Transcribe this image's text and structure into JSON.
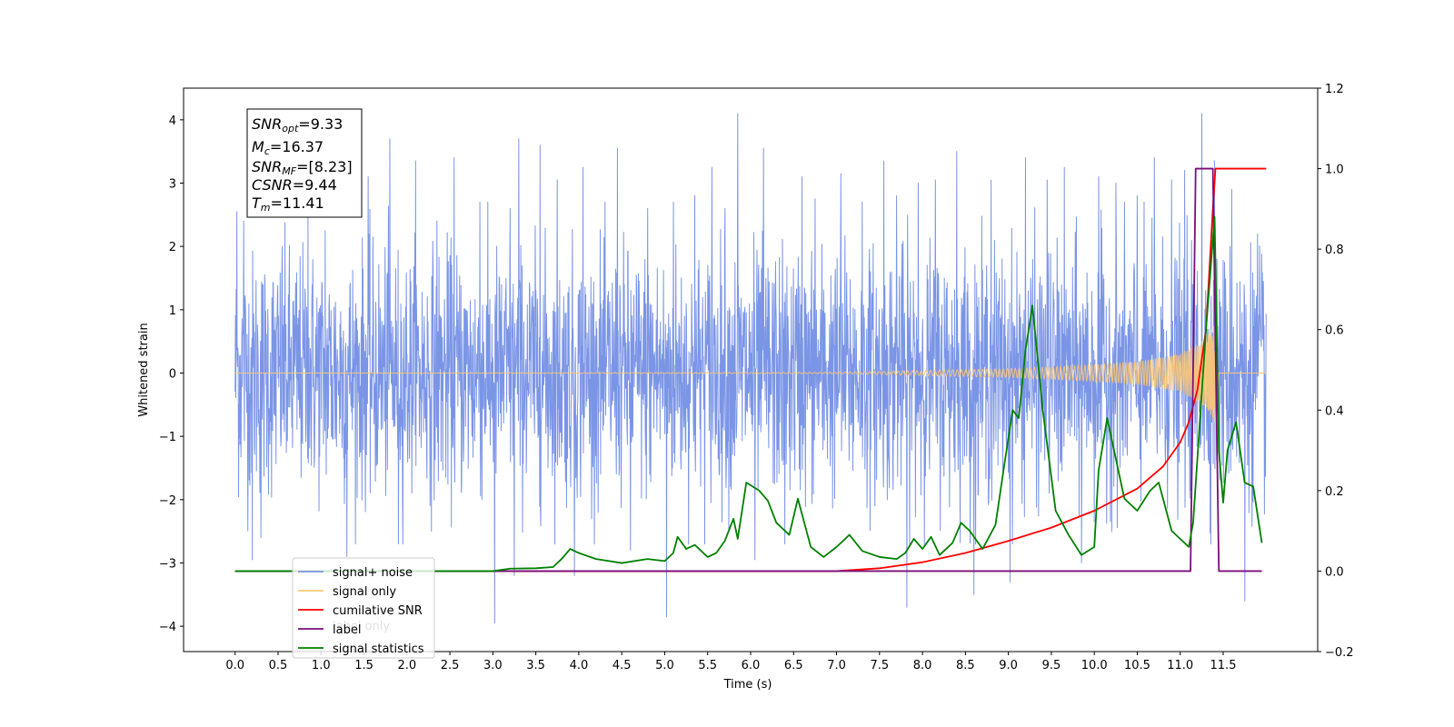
{
  "chart_data": {
    "type": "line",
    "xlabel": "Time (s)",
    "ylabel": "Whitened strain",
    "xlim": [
      -0.6,
      12.6
    ],
    "ylim": [
      -4.4,
      4.5
    ],
    "y2lim": [
      -0.2,
      1.2
    ],
    "grid": false,
    "x_ticks": [
      "0.0",
      "0.5",
      "1.0",
      "1.5",
      "2.0",
      "2.5",
      "3.0",
      "3.5",
      "4.0",
      "4.5",
      "5.0",
      "5.5",
      "6.0",
      "6.5",
      "7.0",
      "7.5",
      "8.0",
      "8.5",
      "9.0",
      "9.5",
      "10.0",
      "10.5",
      "11.0",
      "11.5"
    ],
    "y_ticks": [
      "4",
      "3",
      "2",
      "1",
      "0",
      "−1",
      "−2",
      "−3",
      "−4"
    ],
    "y2_ticks": [
      "1.2",
      "1.0",
      "0.8",
      "0.6",
      "0.4",
      "0.2",
      "0.0",
      "−0.2"
    ],
    "info_box": {
      "snr_opt": {
        "base": "SNR",
        "sub": "opt",
        "value": "=9.33"
      },
      "mc": {
        "base": "M",
        "sub": "c",
        "value": "=16.37"
      },
      "snr_mf": {
        "base": "SNR",
        "sub": "MF",
        "value": "=[8.23]"
      },
      "csnr": {
        "base": "CSNR",
        "value": "=9.44"
      },
      "tm": {
        "base": "T",
        "sub": "m",
        "value": "=11.41"
      }
    },
    "legend": {
      "placement": "lower-left",
      "entries": [
        {
          "label": "signal+ noise",
          "color": "#7b95e6"
        },
        {
          "label": "signal only",
          "color": "#ffc870"
        },
        {
          "label": "cumilative SNR",
          "color": "#ff0000"
        },
        {
          "label": "label",
          "color": "#7b0d7b"
        },
        {
          "label": "signal statistics",
          "color": "#008000"
        }
      ],
      "overlay_text": "label only"
    },
    "series": [
      {
        "name": "signal+ noise",
        "axis": "left",
        "color": "#7b95e6",
        "kind": "noise",
        "t_start": 0.0,
        "t_end": 12.0,
        "n": 3000,
        "rms": 0.95,
        "spikes": [
          [
            0.02,
            2.55
          ],
          [
            0.1,
            2.4
          ],
          [
            0.2,
            -2.95
          ],
          [
            0.3,
            -2.6
          ],
          [
            0.55,
            2.0
          ],
          [
            0.85,
            2.5
          ],
          [
            1.05,
            2.25
          ],
          [
            1.3,
            -2.9
          ],
          [
            1.55,
            3.1
          ],
          [
            1.8,
            3.7
          ],
          [
            1.9,
            -2.7
          ],
          [
            2.1,
            3.35
          ],
          [
            2.35,
            2.4
          ],
          [
            2.55,
            3.4
          ],
          [
            2.85,
            2.7
          ],
          [
            3.02,
            -3.95
          ],
          [
            3.2,
            2.6
          ],
          [
            3.25,
            -3.2
          ],
          [
            3.3,
            3.7
          ],
          [
            3.55,
            3.6
          ],
          [
            3.75,
            3.05
          ],
          [
            3.95,
            -3.2
          ],
          [
            4.05,
            3.25
          ],
          [
            4.45,
            3.55
          ],
          [
            4.6,
            -2.8
          ],
          [
            4.8,
            2.6
          ],
          [
            5.02,
            -3.85
          ],
          [
            5.1,
            2.7
          ],
          [
            5.35,
            2.8
          ],
          [
            5.55,
            3.25
          ],
          [
            5.7,
            2.6
          ],
          [
            5.85,
            4.1
          ],
          [
            6.05,
            -2.95
          ],
          [
            6.15,
            3.55
          ],
          [
            6.4,
            -2.7
          ],
          [
            6.6,
            3.1
          ],
          [
            6.75,
            2.75
          ],
          [
            7.05,
            3.15
          ],
          [
            7.3,
            2.7
          ],
          [
            7.55,
            3.35
          ],
          [
            7.7,
            2.8
          ],
          [
            7.82,
            -3.7
          ],
          [
            7.95,
            3.0
          ],
          [
            8.15,
            3.05
          ],
          [
            8.4,
            3.5
          ],
          [
            8.6,
            -3.5
          ],
          [
            8.8,
            3.05
          ],
          [
            9.02,
            -3.3
          ],
          [
            9.2,
            3.4
          ],
          [
            9.45,
            3.05
          ],
          [
            9.65,
            3.25
          ],
          [
            9.85,
            -3.0
          ],
          [
            10.05,
            3.1
          ],
          [
            10.25,
            3.0
          ],
          [
            10.5,
            2.8
          ],
          [
            10.7,
            3.4
          ],
          [
            10.9,
            3.05
          ],
          [
            11.05,
            3.2
          ],
          [
            11.25,
            4.1
          ],
          [
            11.4,
            3.35
          ],
          [
            11.6,
            2.9
          ],
          [
            11.75,
            -3.6
          ],
          [
            11.9,
            2.2
          ]
        ]
      },
      {
        "name": "signal only",
        "axis": "left",
        "color": "#ffc870",
        "kind": "chirp",
        "t_start": 0.0,
        "t_end": 12.0,
        "tc": 11.41,
        "amp_points": [
          [
            0.0,
            0.0
          ],
          [
            7.0,
            0.01
          ],
          [
            8.0,
            0.04
          ],
          [
            9.0,
            0.07
          ],
          [
            10.0,
            0.13
          ],
          [
            10.5,
            0.18
          ],
          [
            11.0,
            0.3
          ],
          [
            11.3,
            0.55
          ],
          [
            11.41,
            0.8
          ],
          [
            11.45,
            0.0
          ],
          [
            12.0,
            0.0
          ]
        ]
      },
      {
        "name": "cumilative SNR",
        "axis": "right",
        "color": "#ff0000",
        "points": [
          [
            0.0,
            0.0
          ],
          [
            6.7,
            0.0
          ],
          [
            7.0,
            0.0
          ],
          [
            7.5,
            0.007
          ],
          [
            8.0,
            0.022
          ],
          [
            8.5,
            0.045
          ],
          [
            9.0,
            0.075
          ],
          [
            9.5,
            0.108
          ],
          [
            10.0,
            0.15
          ],
          [
            10.5,
            0.205
          ],
          [
            10.8,
            0.26
          ],
          [
            11.0,
            0.32
          ],
          [
            11.1,
            0.37
          ],
          [
            11.2,
            0.45
          ],
          [
            11.3,
            0.6
          ],
          [
            11.38,
            0.9
          ],
          [
            11.41,
            1.0
          ],
          [
            12.0,
            1.0
          ]
        ]
      },
      {
        "name": "label",
        "axis": "right",
        "color": "#7b0d7b",
        "points": [
          [
            0.0,
            0.0
          ],
          [
            11.12,
            0.0
          ],
          [
            11.18,
            1.0
          ],
          [
            11.38,
            1.0
          ],
          [
            11.45,
            0.0
          ],
          [
            11.95,
            0.0
          ]
        ]
      },
      {
        "name": "signal statistics",
        "axis": "right",
        "color": "#008000",
        "points": [
          [
            0.0,
            0.0
          ],
          [
            3.0,
            0.0
          ],
          [
            3.2,
            0.006
          ],
          [
            3.5,
            0.007
          ],
          [
            3.7,
            0.01
          ],
          [
            3.8,
            0.03
          ],
          [
            3.9,
            0.055
          ],
          [
            4.0,
            0.045
          ],
          [
            4.2,
            0.03
          ],
          [
            4.5,
            0.02
          ],
          [
            4.8,
            0.03
          ],
          [
            5.0,
            0.025
          ],
          [
            5.1,
            0.045
          ],
          [
            5.15,
            0.085
          ],
          [
            5.25,
            0.055
          ],
          [
            5.35,
            0.065
          ],
          [
            5.5,
            0.035
          ],
          [
            5.6,
            0.045
          ],
          [
            5.7,
            0.075
          ],
          [
            5.8,
            0.13
          ],
          [
            5.85,
            0.08
          ],
          [
            5.95,
            0.22
          ],
          [
            6.1,
            0.2
          ],
          [
            6.2,
            0.175
          ],
          [
            6.3,
            0.12
          ],
          [
            6.45,
            0.09
          ],
          [
            6.55,
            0.18
          ],
          [
            6.7,
            0.06
          ],
          [
            6.85,
            0.035
          ],
          [
            7.0,
            0.06
          ],
          [
            7.15,
            0.09
          ],
          [
            7.3,
            0.05
          ],
          [
            7.5,
            0.035
          ],
          [
            7.7,
            0.03
          ],
          [
            7.8,
            0.045
          ],
          [
            7.9,
            0.08
          ],
          [
            8.0,
            0.055
          ],
          [
            8.1,
            0.085
          ],
          [
            8.2,
            0.04
          ],
          [
            8.35,
            0.07
          ],
          [
            8.45,
            0.12
          ],
          [
            8.55,
            0.1
          ],
          [
            8.7,
            0.055
          ],
          [
            8.85,
            0.115
          ],
          [
            8.95,
            0.26
          ],
          [
            9.05,
            0.4
          ],
          [
            9.12,
            0.38
          ],
          [
            9.2,
            0.55
          ],
          [
            9.28,
            0.66
          ],
          [
            9.4,
            0.4
          ],
          [
            9.55,
            0.15
          ],
          [
            9.7,
            0.09
          ],
          [
            9.85,
            0.04
          ],
          [
            10.0,
            0.06
          ],
          [
            10.05,
            0.25
          ],
          [
            10.15,
            0.38
          ],
          [
            10.2,
            0.33
          ],
          [
            10.35,
            0.18
          ],
          [
            10.5,
            0.15
          ],
          [
            10.65,
            0.2
          ],
          [
            10.75,
            0.22
          ],
          [
            10.9,
            0.1
          ],
          [
            11.0,
            0.08
          ],
          [
            11.1,
            0.06
          ],
          [
            11.15,
            0.12
          ],
          [
            11.3,
            0.6
          ],
          [
            11.4,
            0.88
          ],
          [
            11.45,
            0.3
          ],
          [
            11.5,
            0.17
          ],
          [
            11.55,
            0.3
          ],
          [
            11.65,
            0.37
          ],
          [
            11.75,
            0.22
          ],
          [
            11.85,
            0.21
          ],
          [
            11.95,
            0.07
          ]
        ]
      }
    ]
  }
}
